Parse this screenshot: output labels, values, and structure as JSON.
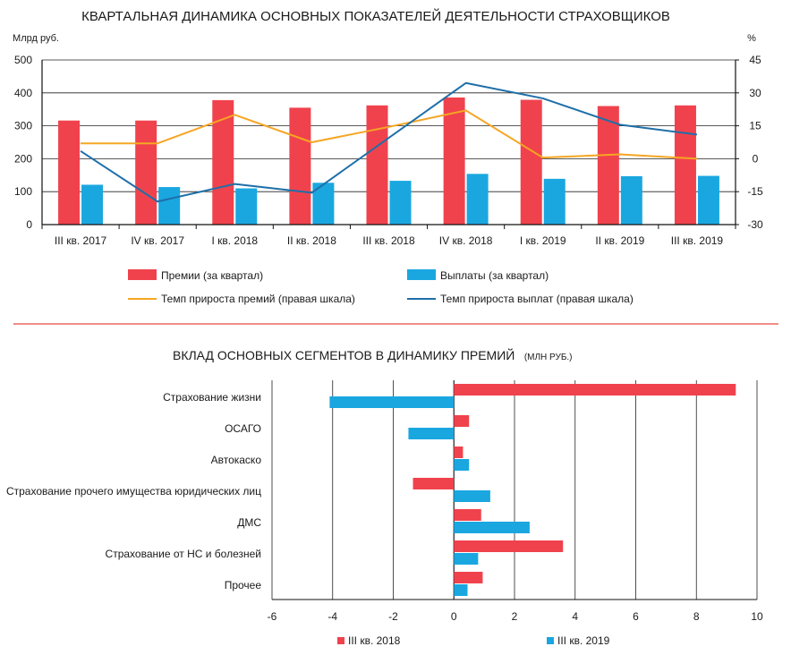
{
  "colors": {
    "premium_bar": "#f0424d",
    "payout_bar": "#1aa7e0",
    "premium_growth_line": "#f5a623",
    "payout_growth_line": "#1f6fa8",
    "separator": "#e8473f",
    "axis": "#111111",
    "grid": "#222222"
  },
  "chart_data": [
    {
      "type": "bar",
      "title": "КВАРТАЛЬНАЯ ДИНАМИКА ОСНОВНЫХ ПОКАЗАТЕЛЕЙ ДЕЯТЕЛЬНОСТИ СТРАХОВЩИКОВ",
      "ylabel": "Млрд руб.",
      "y2label": "%",
      "ylim": [
        0,
        500
      ],
      "y2lim": [
        -30,
        45
      ],
      "yticks": [
        "0",
        "100",
        "200",
        "300",
        "400",
        "500"
      ],
      "y2ticks": [
        "-30",
        "-15",
        "0",
        "15",
        "30",
        "45"
      ],
      "categories": [
        "III кв. 2017",
        "IV кв. 2017",
        "I кв. 2018",
        "II кв. 2018",
        "III кв. 2018",
        "IV кв. 2018",
        "I кв. 2019",
        "II кв. 2019",
        "III кв. 2019"
      ],
      "series": [
        {
          "name": "Премии (за квартал)",
          "kind": "bar",
          "axis": "left",
          "values": [
            316,
            316,
            378,
            355,
            362,
            386,
            379,
            360,
            362
          ]
        },
        {
          "name": "Выплаты (за квартал)",
          "kind": "bar",
          "axis": "left",
          "values": [
            121,
            114,
            110,
            127,
            133,
            154,
            139,
            147,
            148
          ]
        },
        {
          "name": "Темп прироста премий (правая шкала)",
          "kind": "line",
          "axis": "right",
          "values": [
            7,
            7,
            20,
            7.5,
            14.5,
            22,
            0.5,
            2,
            0
          ]
        },
        {
          "name": "Темп прироста выплат (правая шкала)",
          "kind": "line",
          "axis": "right",
          "values": [
            3.5,
            -19.5,
            -11.5,
            -15.5,
            9.5,
            34.5,
            27.5,
            15.5,
            11
          ]
        }
      ],
      "legend_position": "bottom",
      "grid": true
    },
    {
      "type": "bar",
      "orientation": "horizontal",
      "title": "ВКЛАД ОСНОВНЫХ СЕГМЕНТОВ В ДИНАМИКУ ПРЕМИЙ",
      "subtitle": "(МЛН РУБ.)",
      "categories": [
        "Страхование жизни",
        "ОСАГО",
        "Автокаско",
        "Страхование прочего имущества юридических лиц",
        "ДМС",
        "Страхование от НС и болезней",
        "Прочее"
      ],
      "xlim": [
        -6,
        10
      ],
      "xticks": [
        "-6",
        "-4",
        "-2",
        "0",
        "2",
        "4",
        "6",
        "8",
        "10"
      ],
      "series": [
        {
          "name": "III кв. 2018",
          "values": [
            9.3,
            0.5,
            0.3,
            -1.35,
            0.9,
            3.6,
            0.95
          ]
        },
        {
          "name": "III кв. 2019",
          "values": [
            -4.1,
            -1.5,
            0.5,
            1.2,
            2.5,
            0.8,
            0.45
          ]
        }
      ],
      "legend_position": "bottom",
      "grid": true
    }
  ]
}
